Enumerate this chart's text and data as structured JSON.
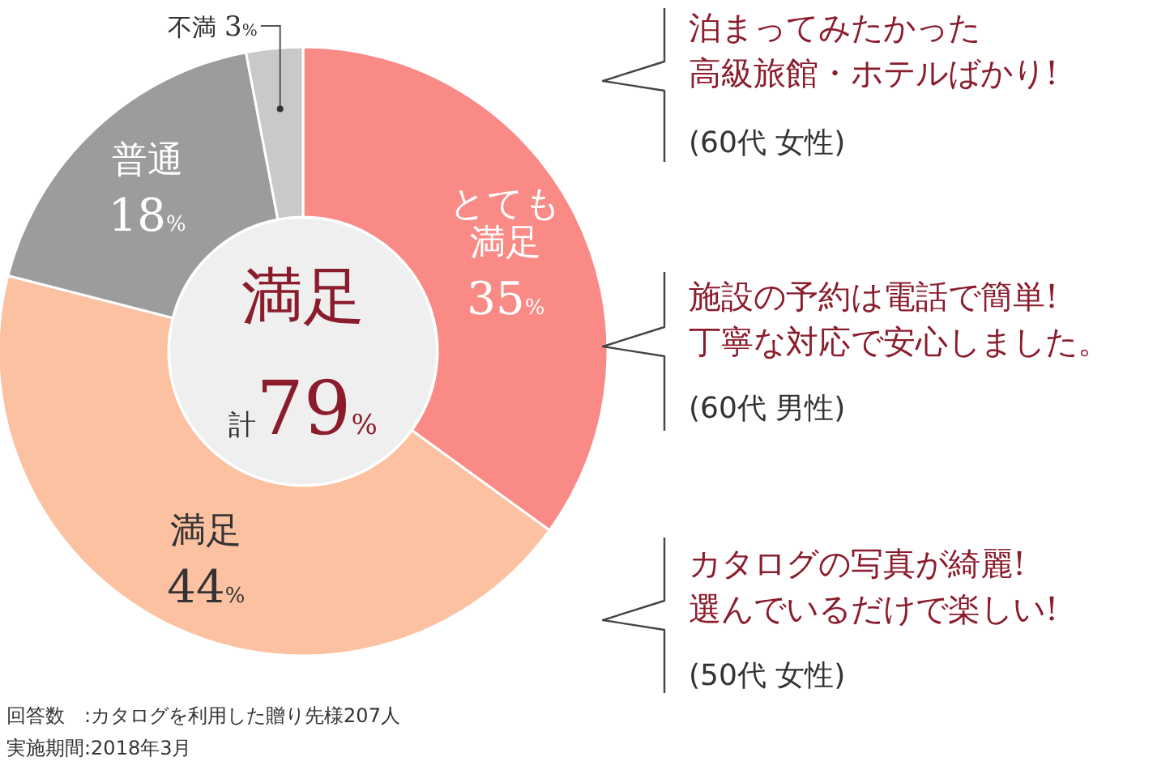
{
  "chart_data": {
    "type": "donut",
    "categories": [
      "とても満足",
      "満足",
      "普通",
      "不満"
    ],
    "values": [
      35,
      44,
      18,
      3
    ],
    "value_labels": [
      "35%",
      "44%",
      "18%",
      "3%"
    ],
    "colors": [
      "#f98a85",
      "#fcc1a1",
      "#9c9c9c",
      "#c9c9c9"
    ],
    "annotations": [
      "満足",
      "計79%",
      "泊まってみたかった",
      "高級旅館・ホテルばかり!",
      "(60代 女性)",
      "施設の予約は電話で簡単!",
      "丁寧な対応で安心しました。",
      "(60代 男性)",
      "カタログの写真が綺麗!",
      "選んでいるだけで楽しい!",
      "(50代 女性)",
      "回答数　:カタログを利用した贈り先様207人",
      "実施期間:2018年3月"
    ]
  }
}
